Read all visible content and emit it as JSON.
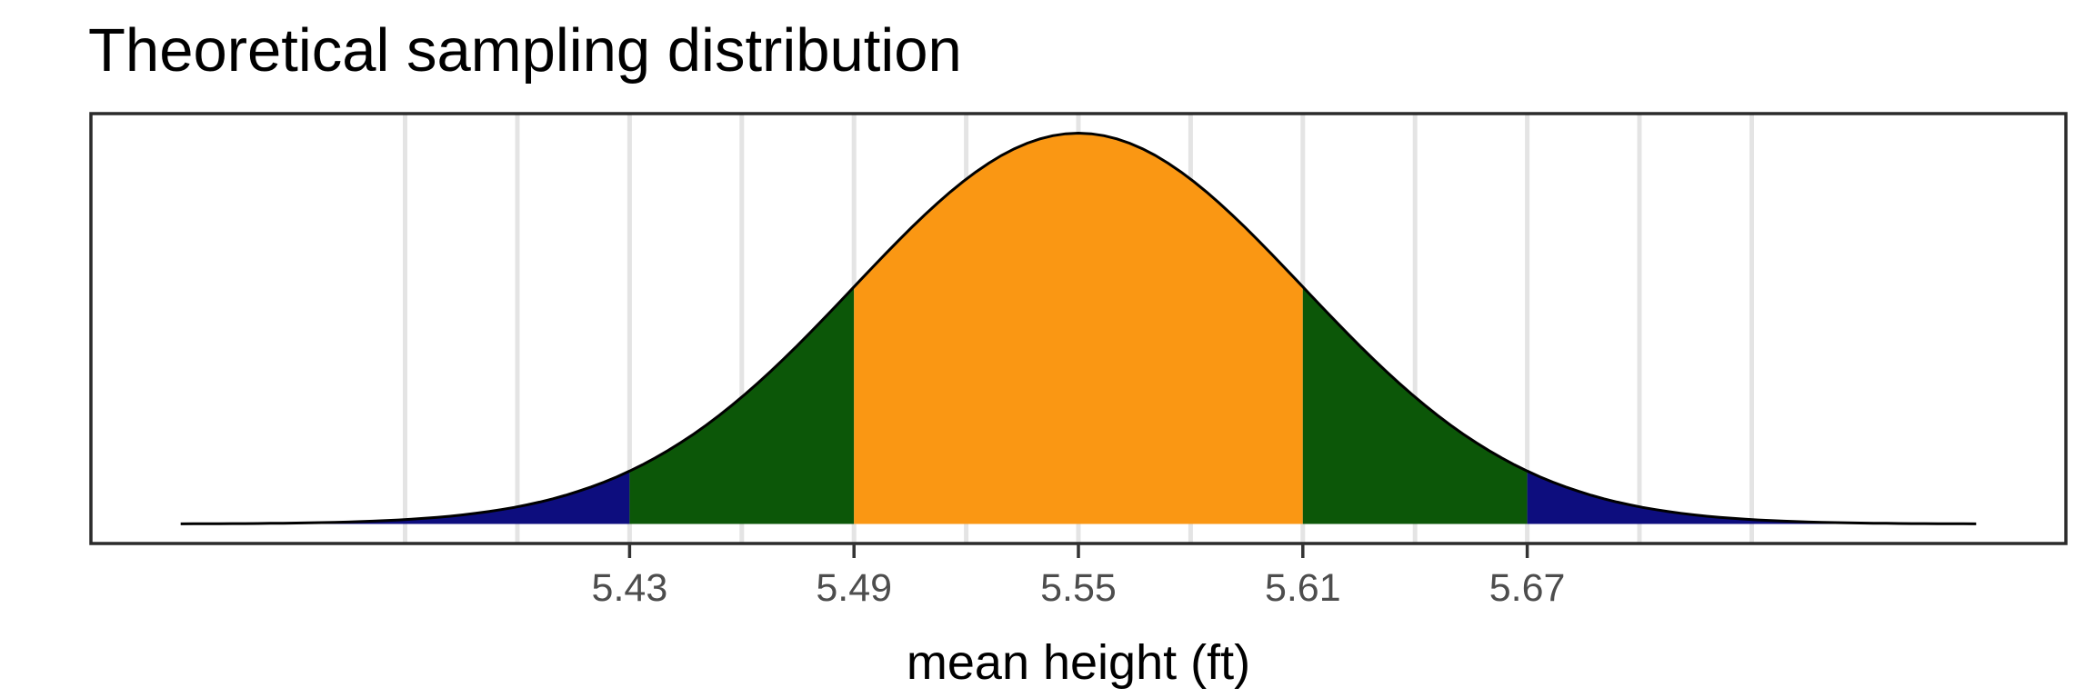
{
  "colors": {
    "background": "#ffffff",
    "panel_border": "#2b2b2b",
    "gridline": "#e4e4e4",
    "curve": "#000000",
    "tick": "#333333",
    "tick_label": "#4d4d4d",
    "title": "#000000",
    "axis_title": "#000000",
    "fill_outer": "#0d0d7e",
    "fill_mid": "#0c5708",
    "fill_center": "#fa9713"
  },
  "chart_data": {
    "type": "area",
    "title": "Theoretical sampling distribution",
    "xlabel": "mean height (ft)",
    "distribution": "normal-density",
    "mean": 5.55,
    "sd": 0.06,
    "curve_x_range": [
      5.31,
      5.79
    ],
    "x_axis_ticks": [
      {
        "value": 5.43,
        "label": "5.43"
      },
      {
        "value": 5.49,
        "label": "5.49"
      },
      {
        "value": 5.55,
        "label": "5.55"
      },
      {
        "value": 5.61,
        "label": "5.61"
      },
      {
        "value": 5.67,
        "label": "5.67"
      }
    ],
    "gridlines_x": [
      5.37,
      5.4,
      5.43,
      5.46,
      5.49,
      5.52,
      5.55,
      5.58,
      5.61,
      5.64,
      5.67,
      5.7,
      5.73
    ],
    "grid": "vertical-only",
    "legend": "none",
    "regions": [
      {
        "x_from": 5.31,
        "x_to": 5.43,
        "fill": "#0d0d7e"
      },
      {
        "x_from": 5.43,
        "x_to": 5.49,
        "fill": "#0c5708"
      },
      {
        "x_from": 5.49,
        "x_to": 5.61,
        "fill": "#fa9713"
      },
      {
        "x_from": 5.61,
        "x_to": 5.67,
        "fill": "#0c5708"
      },
      {
        "x_from": 5.67,
        "x_to": 5.79,
        "fill": "#0d0d7e"
      }
    ]
  }
}
